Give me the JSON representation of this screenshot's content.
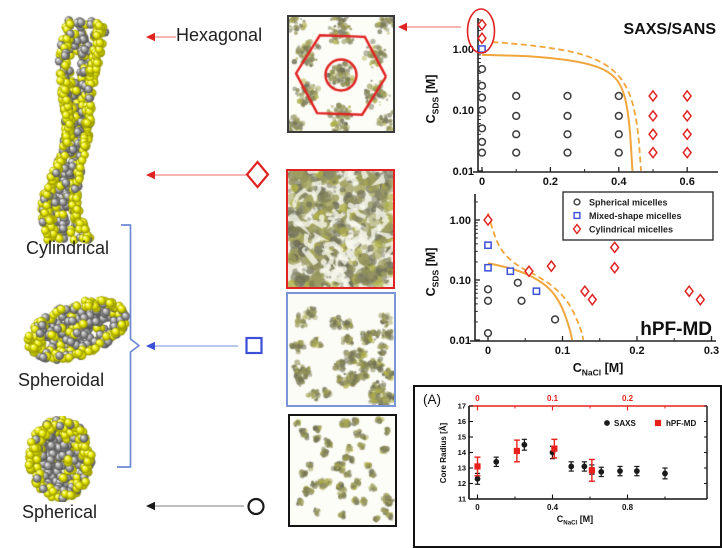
{
  "left_panel": {
    "hexagonal_label": "Hexagonal",
    "items": [
      {
        "id": "cylindrical",
        "label": "Cylindrical"
      },
      {
        "id": "spheroidal",
        "label": "Spheroidal"
      },
      {
        "id": "spherical",
        "label": "Spherical"
      }
    ]
  },
  "connectors": {
    "hexagonal": {
      "color": "#e02322",
      "line": "#ef8a85"
    },
    "cylindrical": {
      "symbol": "diamond",
      "color": "#e02322",
      "line": "#ef8a85"
    },
    "mixed": {
      "symbol": "square",
      "color": "#3b4fd8",
      "line": "#8fa6dd",
      "bracket": "#6d88d4"
    },
    "spherical": {
      "symbol": "circle",
      "color": "#1a1a1a",
      "line": "#9a9a9a"
    },
    "snapshot_arrow": {
      "color": "#e02322",
      "line": "#ef8a85"
    }
  },
  "snapshots": [
    {
      "id": "hexagonal",
      "border_color": "#3a3a3a",
      "overlay": {
        "hexagon_color": "#e02322",
        "circle_color": "#e02322"
      }
    },
    {
      "id": "cylindrical",
      "border_color": "#e02322"
    },
    {
      "id": "mixed-shape",
      "border_color": "#7b96d8"
    },
    {
      "id": "spherical",
      "border_color": "#141414"
    }
  ],
  "chart_data": [
    {
      "type": "scatter",
      "title": "SAXS/SANS",
      "ylabel": "C_SDS [M]",
      "ylabel_parts": {
        "pre": "C",
        "sub": "SDS",
        "post": " [M]"
      },
      "xlabel": "",
      "x_scale": "linear",
      "y_scale": "log",
      "xlim": [
        0,
        0.68
      ],
      "ylim": [
        0.01,
        3.2
      ],
      "x_ticks": [
        "0",
        "0.2",
        "0.4",
        "0.6"
      ],
      "x_minor_ticks": [
        0.1,
        0.3,
        0.5
      ],
      "y_ticks": [
        "1.00",
        "0.10",
        "0.01"
      ],
      "legend": false,
      "series": [
        {
          "name": "Spherical micelles",
          "marker": "circle",
          "color": "#3c3c3c",
          "points": [
            [
              0,
              0.47
            ],
            [
              0,
              0.25
            ],
            [
              0,
              0.16
            ],
            [
              0,
              0.1
            ],
            [
              0,
              0.05
            ],
            [
              0,
              0.03
            ],
            [
              0,
              0.02
            ],
            [
              0.1,
              0.17
            ],
            [
              0.1,
              0.08
            ],
            [
              0.1,
              0.04
            ],
            [
              0.1,
              0.02
            ],
            [
              0.25,
              0.17
            ],
            [
              0.25,
              0.08
            ],
            [
              0.25,
              0.04
            ],
            [
              0.25,
              0.02
            ],
            [
              0.4,
              0.17
            ],
            [
              0.4,
              0.08
            ],
            [
              0.4,
              0.04
            ],
            [
              0.4,
              0.02
            ]
          ]
        },
        {
          "name": "Mixed-shape micelles",
          "marker": "square",
          "color": "#3b4fd8",
          "points": [
            [
              0,
              1.0
            ]
          ]
        },
        {
          "name": "Cylindrical micelles",
          "marker": "diamond",
          "color": "#e02322",
          "points": [
            [
              0,
              2.5
            ],
            [
              0,
              1.5
            ],
            [
              0.5,
              0.17
            ],
            [
              0.5,
              0.08
            ],
            [
              0.5,
              0.04
            ],
            [
              0.5,
              0.02
            ],
            [
              0.6,
              0.17
            ],
            [
              0.6,
              0.08
            ],
            [
              0.6,
              0.04
            ],
            [
              0.6,
              0.02
            ]
          ]
        }
      ],
      "boundary_curves": {
        "color": "#f0a63c",
        "solid": [
          [
            0,
            0.8
          ],
          [
            0.1,
            0.78
          ],
          [
            0.2,
            0.72
          ],
          [
            0.3,
            0.6
          ],
          [
            0.37,
            0.44
          ],
          [
            0.41,
            0.25
          ],
          [
            0.43,
            0.08
          ],
          [
            0.44,
            0.01
          ]
        ],
        "dashed": [
          [
            0.03,
            1.3
          ],
          [
            0.1,
            1.22
          ],
          [
            0.2,
            1.05
          ],
          [
            0.3,
            0.82
          ],
          [
            0.38,
            0.5
          ],
          [
            0.43,
            0.22
          ],
          [
            0.455,
            0.06
          ],
          [
            0.465,
            0.01
          ]
        ]
      },
      "highlight_ellipse": {
        "color": "#e02322",
        "around": "cylindrical points at x=0"
      }
    },
    {
      "type": "scatter",
      "annotation": "hPF-MD",
      "ylabel": "C_SDS [M]",
      "ylabel_parts": {
        "pre": "C",
        "sub": "SDS",
        "post": " [M]"
      },
      "xlabel": "C_NaCl [M]",
      "xlabel_parts": {
        "pre": "C",
        "sub": "NaCl",
        "post": " [M]"
      },
      "x_scale": "linear",
      "y_scale": "log",
      "xlim": [
        0,
        0.31
      ],
      "ylim": [
        0.01,
        2.6
      ],
      "x_ticks": [
        "0",
        "0.1",
        "0.2",
        "0.3"
      ],
      "x_minor_ticks": [
        0.05,
        0.15,
        0.25
      ],
      "y_ticks": [
        "1.00",
        "0.10",
        "0.01"
      ],
      "legend": true,
      "legend_entries": [
        {
          "label": "Spherical micelles",
          "marker": "circle",
          "color": "#3c3c3c"
        },
        {
          "label": "Mixed-shape micelles",
          "marker": "square",
          "color": "#3b4fd8"
        },
        {
          "label": "Cylindrical micelles",
          "marker": "diamond",
          "color": "#e02322"
        }
      ],
      "series": [
        {
          "name": "Spherical micelles",
          "marker": "circle",
          "color": "#3c3c3c",
          "points": [
            [
              0,
              0.07
            ],
            [
              0,
              0.045
            ],
            [
              0.04,
              0.09
            ],
            [
              0.045,
              0.045
            ],
            [
              0.09,
              0.022
            ],
            [
              0,
              0.013
            ]
          ]
        },
        {
          "name": "Mixed-shape micelles",
          "marker": "square",
          "color": "#3b4fd8",
          "points": [
            [
              0,
              0.38
            ],
            [
              0,
              0.16
            ],
            [
              0.03,
              0.14
            ],
            [
              0.065,
              0.065
            ]
          ]
        },
        {
          "name": "Cylindrical micelles",
          "marker": "diamond",
          "color": "#e02322",
          "points": [
            [
              0,
              1.0
            ],
            [
              0.055,
              0.14
            ],
            [
              0.085,
              0.17
            ],
            [
              0.17,
              0.35
            ],
            [
              0.17,
              0.16
            ],
            [
              0.13,
              0.065
            ],
            [
              0.14,
              0.047
            ],
            [
              0.27,
              0.065
            ],
            [
              0.285,
              0.047
            ]
          ]
        }
      ],
      "boundary_curves": {
        "color": "#f0a63c",
        "solid": [
          [
            0,
            0.19
          ],
          [
            0.03,
            0.16
          ],
          [
            0.06,
            0.115
          ],
          [
            0.085,
            0.07
          ],
          [
            0.1,
            0.035
          ],
          [
            0.11,
            0.015
          ],
          [
            0.113,
            0.01
          ]
        ],
        "dashed": [
          [
            0,
            1.3
          ],
          [
            0.008,
            0.55
          ],
          [
            0.02,
            0.28
          ],
          [
            0.04,
            0.17
          ],
          [
            0.065,
            0.12
          ],
          [
            0.09,
            0.075
          ],
          [
            0.11,
            0.04
          ],
          [
            0.125,
            0.015
          ],
          [
            0.128,
            0.01
          ]
        ]
      }
    },
    {
      "type": "scatter-errorbar",
      "panel_label": "(A)",
      "ylabel": "Core Radius [Å]",
      "xlabel": "C_NaCl [M]",
      "xlabel_parts": {
        "pre": "C",
        "sub": "NaCl",
        "post": " [M]"
      },
      "ylim": [
        11,
        17
      ],
      "y_ticks": [
        "11",
        "12",
        "13",
        "14",
        "15",
        "16",
        "17"
      ],
      "x_ticks_bottom": [
        "0",
        "0.4",
        "0.8"
      ],
      "x_minor_bottom": [
        0.2,
        0.6,
        1.0
      ],
      "x_ticks_top": [
        "0",
        "0.1",
        "0.2"
      ],
      "top_axis_color": "#e8211d",
      "top_axis_note": "top red scale = bottom scale / 4",
      "legend": [
        {
          "label": "SAXS",
          "marker": "circle",
          "color": "#1a1a1a"
        },
        {
          "label": "hPF-MD",
          "marker": "square",
          "color": "#e8211d"
        }
      ],
      "series": [
        {
          "name": "SAXS",
          "marker": "circle",
          "filled": true,
          "color": "#1a1a1a",
          "points": [
            [
              0,
              12.3,
              0.35
            ],
            [
              0.1,
              13.4,
              0.3
            ],
            [
              0.25,
              14.5,
              0.35
            ],
            [
              0.4,
              14.0,
              0.4
            ],
            [
              0.5,
              13.1,
              0.3
            ],
            [
              0.57,
              13.1,
              0.3
            ],
            [
              0.61,
              12.9,
              0.3
            ],
            [
              0.66,
              12.75,
              0.3
            ],
            [
              0.76,
              12.8,
              0.3
            ],
            [
              0.85,
              12.8,
              0.3
            ],
            [
              1.0,
              12.65,
              0.35
            ]
          ]
        },
        {
          "name": "hPF-MD",
          "marker": "square",
          "filled": true,
          "color": "#e8211d",
          "points": [
            [
              0,
              13.1,
              0.6
            ],
            [
              0.21,
              14.1,
              0.7
            ],
            [
              0.41,
              14.25,
              0.6
            ],
            [
              0.61,
              12.85,
              0.7
            ]
          ]
        }
      ]
    }
  ]
}
